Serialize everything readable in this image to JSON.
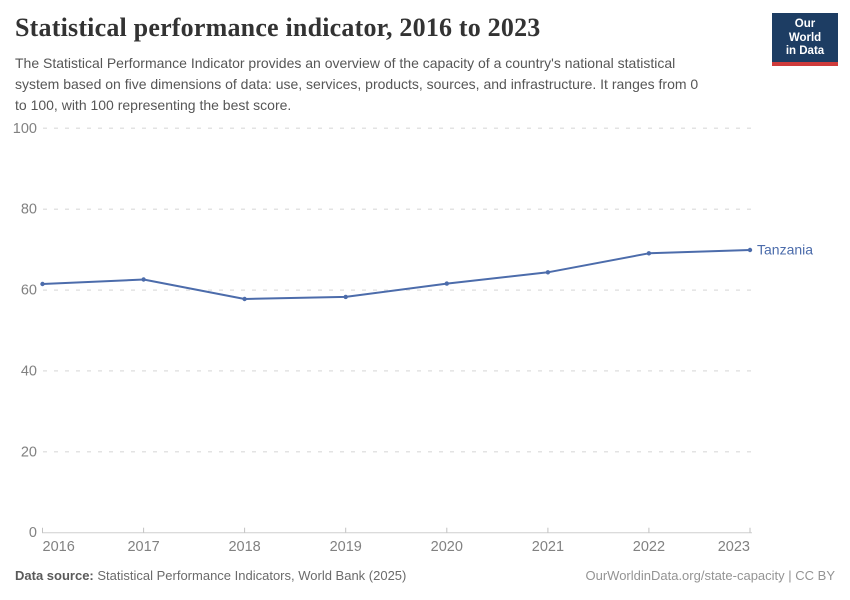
{
  "header": {
    "title": "Statistical performance indicator, 2016 to 2023",
    "subtitle_lines": [
      "The Statistical Performance Indicator provides an overview of the capacity of a country's national statistical",
      "system based on five dimensions of data: use, services, products, sources, and infrastructure. It ranges from 0",
      "to 100, with 100 representing the best score."
    ],
    "logo": {
      "line1": "Our World",
      "line2": "in Data",
      "bg_color": "#1d3d63",
      "stripe_color": "#cf3b3b"
    }
  },
  "chart_data": {
    "type": "line",
    "title": "Statistical performance indicator, 2016 to 2023",
    "x": [
      2016,
      2017,
      2018,
      2019,
      2020,
      2021,
      2022,
      2023
    ],
    "series": [
      {
        "name": "Tanzania",
        "values": [
          61.5,
          62.6,
          57.8,
          58.3,
          61.6,
          64.4,
          69.1,
          69.9
        ],
        "color": "#4c6cab"
      }
    ],
    "xlabel": "",
    "ylabel": "",
    "ylim": [
      0,
      100
    ],
    "yticks": [
      0,
      20,
      40,
      60,
      80,
      100
    ],
    "grid": "horizontal-dashed",
    "legend_position": "end-of-line-label"
  },
  "colors": {
    "grid": "#e3e3e3",
    "axis": "#cfcfcf",
    "tick_label": "#818181"
  },
  "footer": {
    "source_label": "Data source:",
    "source_text": " Statistical Performance Indicators, World Bank (2025)",
    "attribution": "OurWorldinData.org/state-capacity | CC BY"
  }
}
